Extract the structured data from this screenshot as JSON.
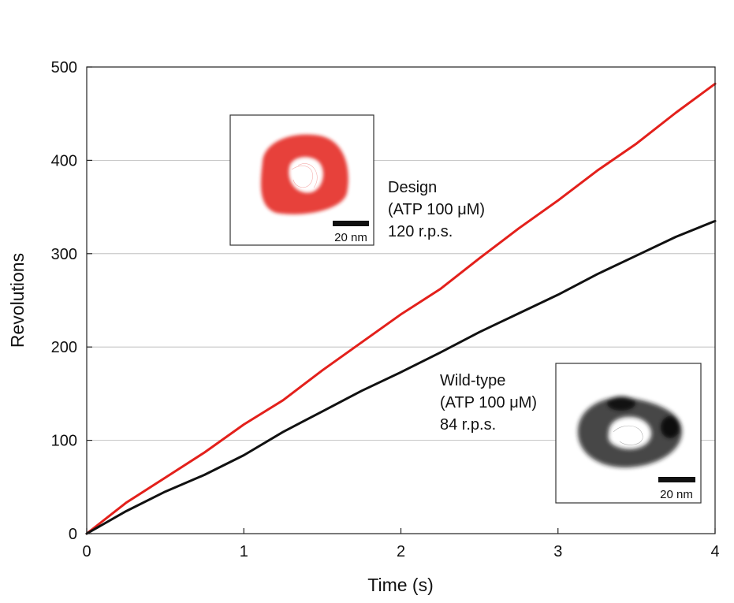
{
  "chart_data": {
    "type": "line",
    "xlabel": "Time (s)",
    "ylabel": "Revolutions",
    "xlim": [
      0,
      4
    ],
    "ylim": [
      0,
      500
    ],
    "xticks": [
      0,
      1,
      2,
      3,
      4
    ],
    "yticks": [
      0,
      100,
      200,
      300,
      400,
      500
    ],
    "grid": "horizontal",
    "series": [
      {
        "key": "design",
        "color": "#e3201b",
        "x": [
          0,
          0.25,
          0.5,
          0.75,
          1.0,
          1.25,
          1.5,
          1.75,
          2.0,
          2.25,
          2.5,
          2.75,
          3.0,
          3.25,
          3.5,
          3.75,
          4.0
        ],
        "y": [
          0,
          33,
          60,
          87,
          117,
          143,
          175,
          205,
          235,
          262,
          295,
          327,
          357,
          389,
          418,
          451,
          482
        ]
      },
      {
        "key": "wild-type",
        "color": "#111111",
        "x": [
          0,
          0.25,
          0.5,
          0.75,
          1.0,
          1.25,
          1.5,
          1.75,
          2.0,
          2.25,
          2.5,
          2.75,
          3.0,
          3.25,
          3.5,
          3.75,
          4.0
        ],
        "y": [
          0,
          24,
          45,
          63,
          84,
          109,
          131,
          153,
          173,
          194,
          216,
          236,
          256,
          278,
          298,
          318,
          335
        ]
      }
    ],
    "annotations": [
      {
        "key": "design",
        "lines": [
          "Design",
          "(ATP 100 μM)",
          "120 r.p.s."
        ]
      },
      {
        "key": "wild-type",
        "lines": [
          "Wild-type",
          "(ATP 100 μM)",
          "84 r.p.s."
        ]
      }
    ],
    "insets": [
      {
        "key": "design",
        "color": "#e3201b",
        "scale_label": "20 nm"
      },
      {
        "key": "wild-type",
        "color": "#111111",
        "scale_label": "20 nm"
      }
    ]
  }
}
